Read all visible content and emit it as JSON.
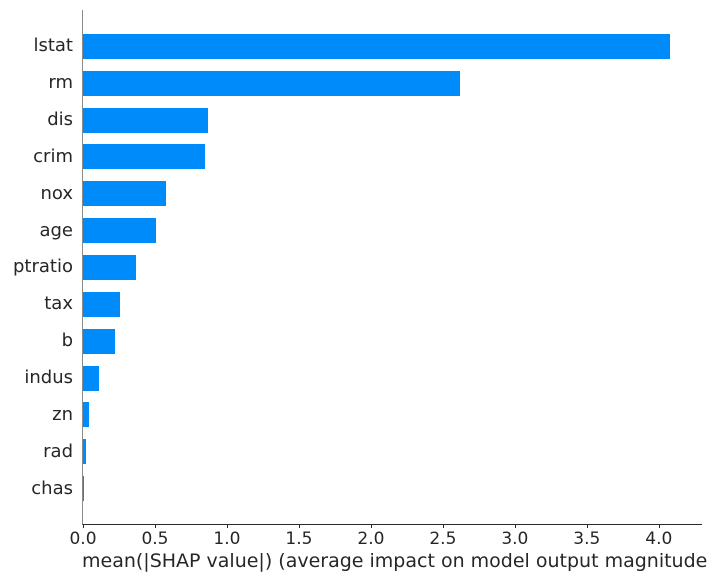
{
  "chart_data": {
    "type": "bar",
    "orientation": "horizontal",
    "title": "",
    "xlabel": "mean(|SHAP value|) (average impact on model output magnitude)",
    "ylabel": "",
    "categories": [
      "lstat",
      "rm",
      "dis",
      "crim",
      "nox",
      "age",
      "ptratio",
      "tax",
      "b",
      "indus",
      "zn",
      "rad",
      "chas"
    ],
    "values": [
      4.08,
      2.62,
      0.87,
      0.85,
      0.58,
      0.51,
      0.37,
      0.26,
      0.22,
      0.11,
      0.04,
      0.02,
      0.01
    ],
    "xlim": [
      0,
      4.3
    ],
    "xticks": [
      {
        "value": 0.0,
        "label": "0.0"
      },
      {
        "value": 0.5,
        "label": "0.5"
      },
      {
        "value": 1.0,
        "label": "1.0"
      },
      {
        "value": 1.5,
        "label": "1.5"
      },
      {
        "value": 2.0,
        "label": "2.0"
      },
      {
        "value": 2.5,
        "label": "2.5"
      },
      {
        "value": 3.0,
        "label": "3.0"
      },
      {
        "value": 3.5,
        "label": "3.5"
      },
      {
        "value": 4.0,
        "label": "4.0"
      }
    ],
    "bar_color": "#008bfb",
    "text_color": "#262626",
    "background_color": "#ffffff",
    "grid": false,
    "legend": null
  }
}
